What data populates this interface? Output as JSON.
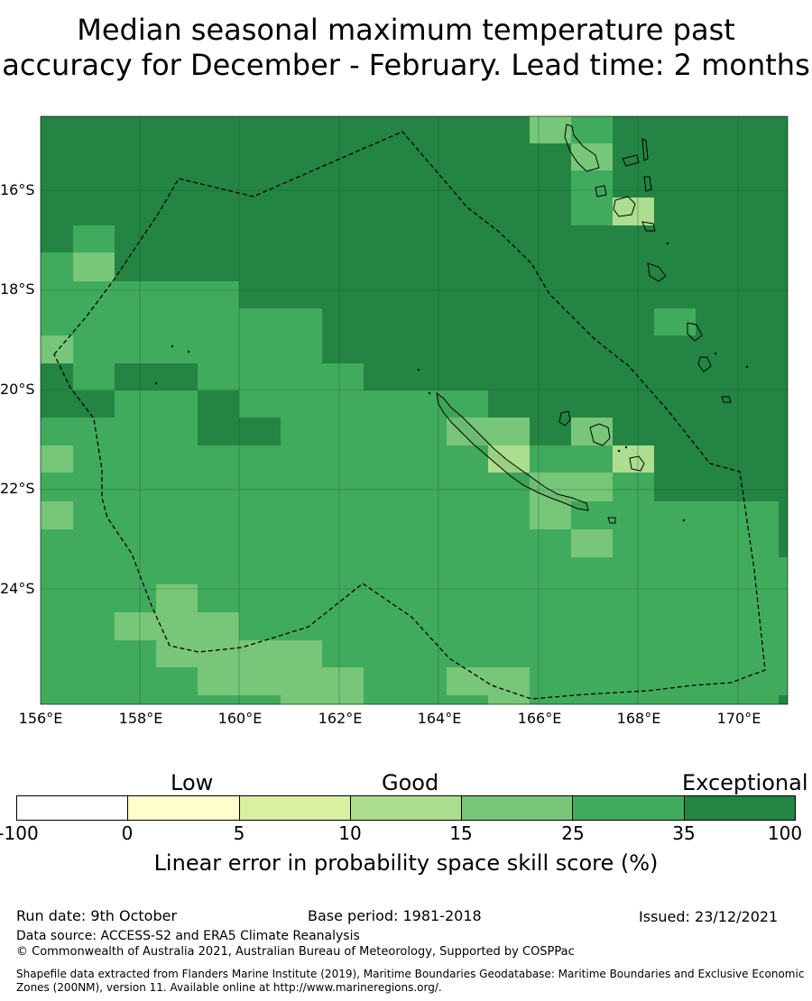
{
  "title": {
    "line1": "Median seasonal maximum temperature past",
    "line2": "accuracy for December - February. Lead time: 2 months"
  },
  "map": {
    "lat_ticks": [
      "16°S",
      "18°S",
      "20°S",
      "22°S",
      "24°S"
    ],
    "lon_ticks": [
      "156°E",
      "158°E",
      "160°E",
      "162°E",
      "164°E",
      "166°E",
      "168°E",
      "170°E"
    ],
    "region": "New Caledonia EEZ",
    "grid_shown": true,
    "boundary_style": "dashed"
  },
  "legend": {
    "categories": [
      "Low",
      "Good",
      "Exceptional"
    ],
    "ticks": [
      "-100",
      "0",
      "5",
      "10",
      "15",
      "25",
      "35",
      "100"
    ],
    "colors": [
      "#ffffff",
      "#ffffcc",
      "#d9f0a3",
      "#addd8e",
      "#78c679",
      "#41ab5d",
      "#238443"
    ],
    "label": "Linear error in probability space skill score (%)"
  },
  "footer": {
    "run_date": "Run date: 9th October",
    "base_period": "Base period: 1981-2018",
    "issued": "Issued: 23/12/2021",
    "data_source": "Data source: ACCESS-S2 and ERA5 Climate Reanalysis",
    "copyright": "© Commonwealth of Australia 2021, Australian Bureau of Meteorology, Supported by COSPPac",
    "shapefile_line1": "Shapefile data extracted from Flanders Marine Institute (2019), Maritime Boundaries Geodatabase: Maritime Boundaries and Exclusive Economic",
    "shapefile_line2": "Zones (200NM), version 11. Available online at http://www.marineregions.org/."
  }
}
